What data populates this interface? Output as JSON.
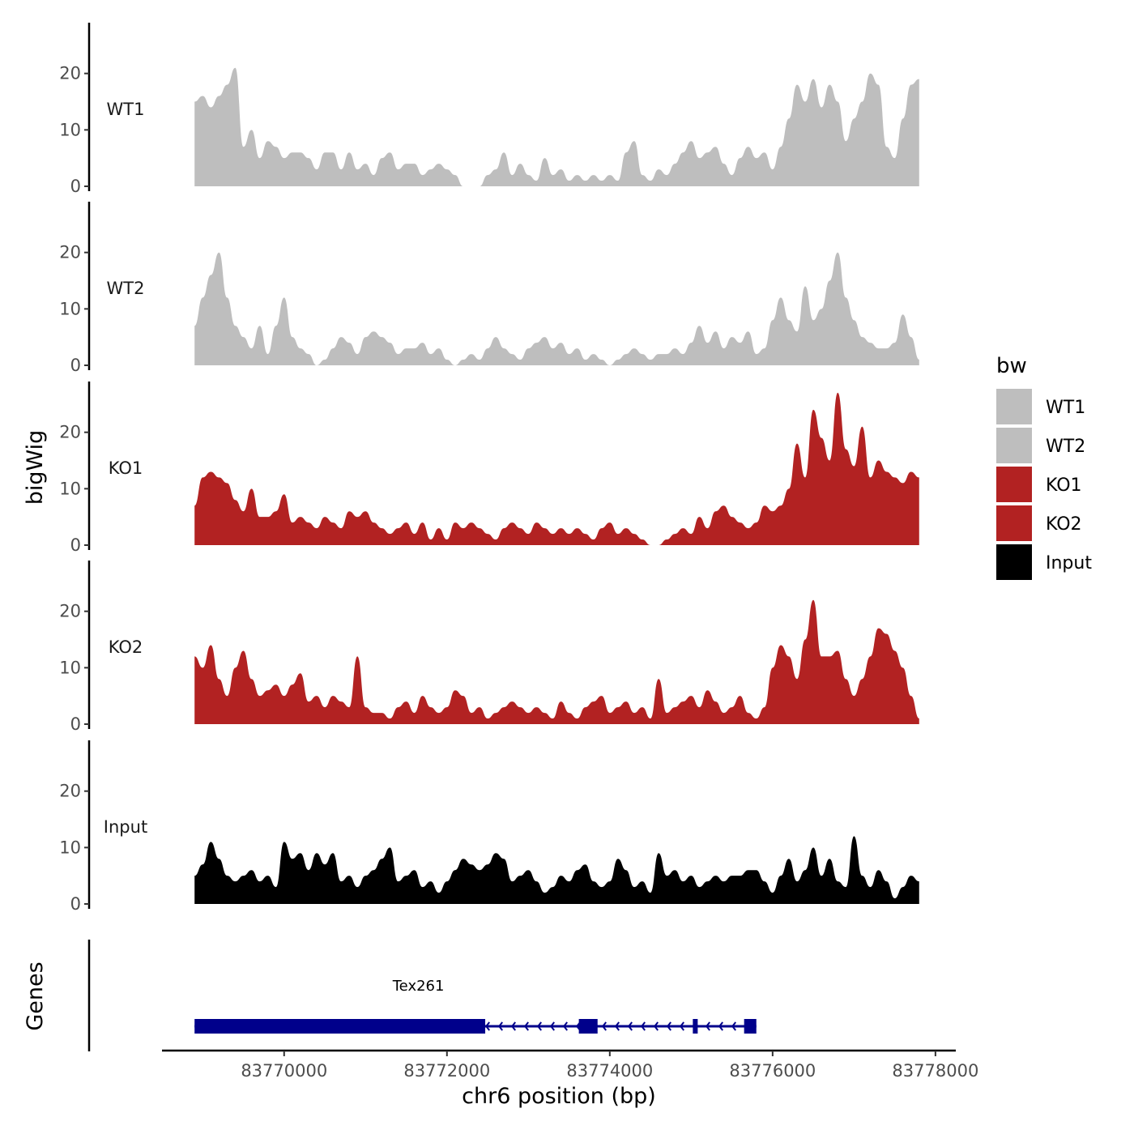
{
  "chart_data": {
    "type": "area",
    "title": "",
    "xlabel": "chr6 position (bp)",
    "ylabel": "bigWig",
    "genes_label": "Genes",
    "xlim": [
      83768500,
      83778250
    ],
    "ylim": [
      0,
      29
    ],
    "x_ticks": [
      83770000,
      83772000,
      83774000,
      83776000,
      83778000
    ],
    "x_tick_labels": [
      "83770000",
      "83772000",
      "83774000",
      "83776000",
      "83778000"
    ],
    "y_ticks": [
      0,
      10,
      20
    ],
    "y_tick_labels": [
      "0",
      "10",
      "20"
    ],
    "legend": {
      "title": "bw",
      "position": "right",
      "entries": [
        {
          "label": "WT1",
          "color": "#bebebe"
        },
        {
          "label": "WT2",
          "color": "#bebebe"
        },
        {
          "label": "KO1",
          "color": "#b22222"
        },
        {
          "label": "KO2",
          "color": "#b22222"
        },
        {
          "label": "Input",
          "color": "#000000"
        }
      ]
    },
    "x": [
      83768900,
      83769000,
      83769100,
      83769200,
      83769300,
      83769400,
      83769500,
      83769600,
      83769700,
      83769800,
      83769900,
      83770000,
      83770100,
      83770200,
      83770300,
      83770400,
      83770500,
      83770600,
      83770700,
      83770800,
      83770900,
      83771000,
      83771100,
      83771200,
      83771300,
      83771400,
      83771500,
      83771600,
      83771700,
      83771800,
      83771900,
      83772000,
      83772100,
      83772200,
      83772300,
      83772400,
      83772500,
      83772600,
      83772700,
      83772800,
      83772900,
      83773000,
      83773100,
      83773200,
      83773300,
      83773400,
      83773500,
      83773600,
      83773700,
      83773800,
      83773900,
      83774000,
      83774100,
      83774200,
      83774300,
      83774400,
      83774500,
      83774600,
      83774700,
      83774800,
      83774900,
      83775000,
      83775100,
      83775200,
      83775300,
      83775400,
      83775500,
      83775600,
      83775700,
      83775800,
      83775900,
      83776000,
      83776100,
      83776200,
      83776300,
      83776400,
      83776500,
      83776600,
      83776700,
      83776800,
      83776900,
      83777000,
      83777100,
      83777200,
      83777300,
      83777400,
      83777500,
      83777600,
      83777700,
      83777800
    ],
    "series": [
      {
        "name": "WT1",
        "color": "#bebebe",
        "values": [
          15,
          16,
          14,
          16,
          18,
          21,
          7,
          10,
          5,
          8,
          7,
          5,
          6,
          6,
          5,
          3,
          6,
          6,
          3,
          6,
          3,
          4,
          2,
          5,
          6,
          3,
          4,
          4,
          2,
          3,
          4,
          3,
          2,
          0,
          0,
          0,
          2,
          3,
          6,
          2,
          4,
          2,
          1,
          5,
          2,
          3,
          1,
          2,
          1,
          2,
          1,
          2,
          1,
          6,
          8,
          2,
          1,
          3,
          2,
          4,
          6,
          8,
          5,
          6,
          7,
          4,
          2,
          5,
          7,
          5,
          6,
          3,
          7,
          12,
          18,
          15,
          19,
          14,
          18,
          15,
          8,
          12,
          15,
          20,
          18,
          7,
          5,
          12,
          18,
          19
        ]
      },
      {
        "name": "WT2",
        "color": "#bebebe",
        "values": [
          7,
          12,
          16,
          20,
          12,
          7,
          5,
          3,
          7,
          2,
          7,
          12,
          5,
          3,
          2,
          0,
          1,
          3,
          5,
          4,
          2,
          5,
          6,
          5,
          4,
          2,
          3,
          3,
          4,
          2,
          3,
          1,
          0,
          1,
          2,
          1,
          3,
          5,
          3,
          2,
          1,
          3,
          4,
          5,
          3,
          4,
          2,
          3,
          1,
          2,
          1,
          0,
          1,
          2,
          3,
          2,
          1,
          2,
          2,
          3,
          2,
          4,
          7,
          4,
          6,
          3,
          5,
          4,
          6,
          2,
          3,
          8,
          12,
          8,
          6,
          14,
          8,
          10,
          15,
          20,
          12,
          8,
          5,
          4,
          3,
          3,
          4,
          9,
          5,
          1
        ]
      },
      {
        "name": "KO1",
        "color": "#b22222",
        "values": [
          7,
          12,
          13,
          12,
          11,
          8,
          6,
          10,
          5,
          5,
          6,
          9,
          4,
          5,
          4,
          3,
          5,
          4,
          3,
          6,
          5,
          6,
          4,
          3,
          2,
          3,
          4,
          2,
          4,
          1,
          3,
          1,
          4,
          3,
          4,
          3,
          2,
          1,
          3,
          4,
          3,
          2,
          4,
          3,
          2,
          3,
          2,
          3,
          2,
          1,
          3,
          4,
          2,
          3,
          2,
          1,
          0,
          0,
          1,
          2,
          3,
          2,
          5,
          3,
          6,
          7,
          5,
          4,
          3,
          4,
          7,
          6,
          7,
          10,
          18,
          12,
          24,
          19,
          15,
          27,
          17,
          14,
          21,
          12,
          15,
          13,
          12,
          11,
          13,
          12
        ]
      },
      {
        "name": "KO2",
        "color": "#b22222",
        "values": [
          12,
          10,
          14,
          8,
          5,
          10,
          13,
          8,
          5,
          6,
          7,
          5,
          7,
          9,
          4,
          5,
          3,
          5,
          4,
          3,
          12,
          3,
          2,
          2,
          1,
          3,
          4,
          2,
          5,
          3,
          2,
          3,
          6,
          5,
          2,
          3,
          1,
          2,
          3,
          4,
          3,
          2,
          3,
          2,
          1,
          4,
          2,
          1,
          3,
          4,
          5,
          2,
          3,
          4,
          2,
          3,
          1,
          8,
          2,
          3,
          4,
          5,
          3,
          6,
          4,
          2,
          3,
          5,
          2,
          1,
          3,
          10,
          14,
          12,
          8,
          15,
          22,
          12,
          12,
          13,
          8,
          5,
          8,
          12,
          17,
          16,
          13,
          10,
          5,
          1
        ]
      },
      {
        "name": "Input",
        "color": "#000000",
        "values": [
          5,
          7,
          11,
          8,
          5,
          4,
          5,
          6,
          4,
          5,
          3,
          11,
          8,
          9,
          6,
          9,
          7,
          9,
          4,
          5,
          3,
          5,
          6,
          8,
          10,
          4,
          5,
          6,
          3,
          4,
          2,
          4,
          6,
          8,
          7,
          6,
          7,
          9,
          8,
          4,
          5,
          6,
          4,
          2,
          3,
          5,
          4,
          6,
          7,
          4,
          3,
          4,
          8,
          6,
          3,
          4,
          2,
          9,
          5,
          6,
          4,
          5,
          3,
          4,
          5,
          4,
          5,
          5,
          6,
          6,
          4,
          2,
          5,
          8,
          4,
          6,
          10,
          5,
          8,
          4,
          3,
          12,
          5,
          3,
          6,
          4,
          1,
          3,
          5,
          4
        ]
      }
    ],
    "genes": [
      {
        "name": "Tex261",
        "strand": "-",
        "start": 83768900,
        "end": 83775800,
        "color": "#00008b",
        "exons": [
          [
            83768900,
            83772470
          ],
          [
            83773620,
            83773850
          ],
          [
            83775020,
            83775080
          ],
          [
            83775650,
            83775800
          ]
        ]
      }
    ]
  }
}
